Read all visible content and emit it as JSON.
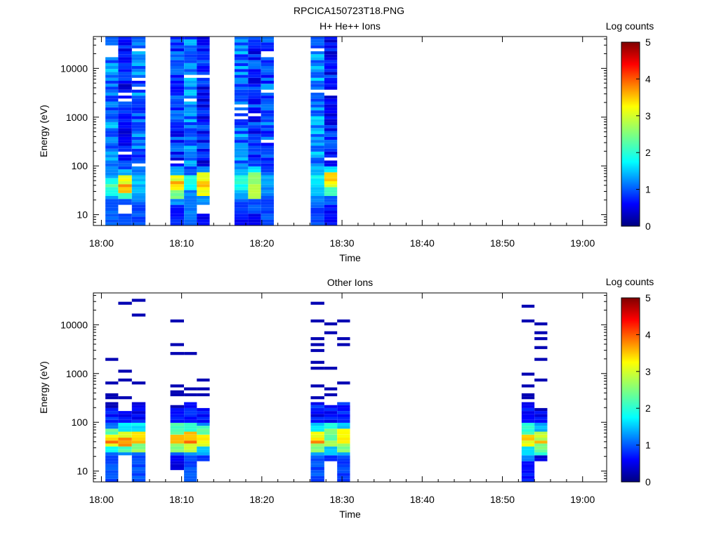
{
  "figure_title": "RPCICA150723T18.PNG",
  "chart_data": [
    {
      "type": "heatmap",
      "title": "H+ He++ Ions",
      "xlabel": "Time",
      "ylabel": "Energy (eV)",
      "y_scale": "log",
      "ylim": [
        6,
        45000
      ],
      "x_range": [
        "17:59",
        "19:03"
      ],
      "x_ticks": [
        "18:00",
        "18:10",
        "18:20",
        "18:30",
        "18:40",
        "18:50",
        "19:00"
      ],
      "y_ticks": [
        "10",
        "100",
        "1000",
        "10000"
      ],
      "colorbar": {
        "label": "Log counts",
        "range": [
          0,
          5
        ],
        "ticks": [
          "0",
          "1",
          "2",
          "3",
          "4",
          "5"
        ]
      },
      "scans": [
        {
          "start": "18:00.5",
          "end": "18:02.1",
          "low": [
            [
              6,
              1.1
            ],
            [
              12,
              1.1
            ],
            [
              20,
              1.4
            ],
            [
              25,
              1.9
            ],
            [
              30,
              2.2
            ],
            [
              38,
              2.4
            ],
            [
              45,
              1.9
            ],
            [
              55,
              1.4
            ],
            [
              70,
              1.2
            ],
            [
              100,
              1.3
            ]
          ],
          "mid": 1.25
        },
        {
          "start": "18:02.1",
          "end": "18:03.8",
          "low": [
            [
              6,
              1.0
            ],
            [
              10,
              null
            ],
            [
              15,
              1.0
            ],
            [
              22,
              2.1
            ],
            [
              28,
              3.4
            ],
            [
              35,
              3.6
            ],
            [
              45,
              3.0
            ],
            [
              60,
              1.5
            ],
            [
              80,
              1.0
            ],
            [
              100,
              0.6
            ]
          ],
          "mid": 0.7
        },
        {
          "start": "18:03.8",
          "end": "18:05.5",
          "low": [
            [
              6,
              1.0
            ],
            [
              15,
              1.2
            ],
            [
              25,
              1.5
            ],
            [
              40,
              1.6
            ],
            [
              60,
              1.3
            ],
            [
              100,
              1.0
            ]
          ],
          "mid": 1.15
        },
        {
          "start": "18:08.6",
          "end": "18:10.3",
          "low": [
            [
              6,
              0.8
            ],
            [
              15,
              1.3
            ],
            [
              22,
              2.5
            ],
            [
              30,
              3.3
            ],
            [
              40,
              3.6
            ],
            [
              50,
              3.0
            ],
            [
              60,
              1.5
            ],
            [
              100,
              0.9
            ]
          ],
          "mid": 0.85
        },
        {
          "start": "18:10.3",
          "end": "18:11.9",
          "low": [
            [
              6,
              1.2
            ],
            [
              20,
              1.3
            ],
            [
              30,
              2.0
            ],
            [
              40,
              2.1
            ],
            [
              60,
              1.0
            ],
            [
              100,
              1.3
            ]
          ],
          "mid": 1.2
        },
        {
          "start": "18:11.9",
          "end": "18:13.5",
          "low": [
            [
              6,
              0.6
            ],
            [
              10,
              null
            ],
            [
              15,
              1.4
            ],
            [
              25,
              3.0
            ],
            [
              35,
              3.4
            ],
            [
              50,
              2.9
            ],
            [
              70,
              1.3
            ],
            [
              100,
              0.7
            ]
          ],
          "mid": 0.75
        },
        {
          "start": "18:16.6",
          "end": "18:18.3",
          "low": [
            [
              6,
              0.7
            ],
            [
              10,
              1.0
            ],
            [
              20,
              1.5
            ],
            [
              30,
              1.9
            ],
            [
              40,
              2.0
            ],
            [
              60,
              1.4
            ],
            [
              100,
              1.0
            ]
          ],
          "mid": 1.2
        },
        {
          "start": "18:18.3",
          "end": "18:19.9",
          "low": [
            [
              6,
              0.6
            ],
            [
              10,
              1.0
            ],
            [
              15,
              1.0
            ],
            [
              20,
              2.8
            ],
            [
              30,
              2.9
            ],
            [
              45,
              2.6
            ],
            [
              70,
              1.7
            ],
            [
              100,
              1.1
            ]
          ],
          "mid": 0.8
        },
        {
          "start": "18:19.9",
          "end": "18:21.5",
          "low": [
            [
              6,
              1.0
            ],
            [
              15,
              1.0
            ],
            [
              25,
              1.3
            ],
            [
              40,
              1.4
            ],
            [
              60,
              1.0
            ],
            [
              100,
              0.8
            ]
          ],
          "mid": 1.0
        },
        {
          "start": "18:26.1",
          "end": "18:27.8",
          "low": [
            [
              6,
              1.0
            ],
            [
              15,
              1.2
            ],
            [
              25,
              1.6
            ],
            [
              40,
              1.9
            ],
            [
              60,
              1.5
            ],
            [
              100,
              1.0
            ]
          ],
          "mid": 1.3
        },
        {
          "start": "18:27.8",
          "end": "18:29.4",
          "low": [
            [
              6,
              0.7
            ],
            [
              15,
              1.1
            ],
            [
              25,
              2.2
            ],
            [
              35,
              3.0
            ],
            [
              50,
              3.4
            ],
            [
              70,
              1.8
            ],
            [
              100,
              1.0
            ]
          ],
          "mid": 0.75
        }
      ]
    },
    {
      "type": "heatmap",
      "title": "Other Ions",
      "xlabel": "Time",
      "ylabel": "Energy (eV)",
      "y_scale": "log",
      "ylim": [
        6,
        45000
      ],
      "x_range": [
        "17:59",
        "19:03"
      ],
      "x_ticks": [
        "18:00",
        "18:10",
        "18:20",
        "18:30",
        "18:40",
        "18:50",
        "19:00"
      ],
      "y_ticks": [
        "10",
        "100",
        "1000",
        "10000"
      ],
      "colorbar": {
        "label": "Log counts",
        "range": [
          0,
          5
        ],
        "ticks": [
          "0",
          "1",
          "2",
          "3",
          "4",
          "5"
        ]
      },
      "scans": [
        {
          "start": "18:00.5",
          "end": "18:02.1",
          "low": [
            [
              6,
              1.0
            ],
            [
              20,
              1.1
            ],
            [
              25,
              1.8
            ],
            [
              30,
              3.0
            ],
            [
              35,
              3.9
            ],
            [
              45,
              3.2
            ],
            [
              55,
              2.3
            ],
            [
              70,
              1.2
            ],
            [
              100,
              0.8
            ],
            [
              200,
              0.5
            ]
          ]
        },
        {
          "start": "18:02.1",
          "end": "18:03.8",
          "low": [
            [
              10,
              null
            ],
            [
              20,
              1.4
            ],
            [
              25,
              2.3
            ],
            [
              30,
              3.6
            ],
            [
              40,
              3.8
            ],
            [
              50,
              2.9
            ],
            [
              65,
              1.8
            ],
            [
              100,
              0.8
            ],
            [
              160,
              0.4
            ]
          ]
        },
        {
          "start": "18:03.8",
          "end": "18:05.5",
          "low": [
            [
              6,
              1.0
            ],
            [
              20,
              1.3
            ],
            [
              25,
              2.6
            ],
            [
              35,
              3.6
            ],
            [
              45,
              3.3
            ],
            [
              60,
              1.8
            ],
            [
              100,
              0.9
            ],
            [
              250,
              0.5
            ]
          ]
        },
        {
          "start": "18:08.6",
          "end": "18:10.3",
          "low": [
            [
              10,
              0.5
            ],
            [
              20,
              1.1
            ],
            [
              25,
              2.5
            ],
            [
              35,
              3.5
            ],
            [
              45,
              3.5
            ],
            [
              55,
              2.2
            ],
            [
              100,
              0.6
            ],
            [
              190,
              0.3
            ]
          ]
        },
        {
          "start": "18:10.3",
          "end": "18:11.9",
          "low": [
            [
              6,
              1.0
            ],
            [
              20,
              1.5
            ],
            [
              25,
              2.9
            ],
            [
              35,
              4.0
            ],
            [
              45,
              3.4
            ],
            [
              60,
              2.0
            ],
            [
              100,
              0.9
            ],
            [
              250,
              0.4
            ]
          ]
        },
        {
          "start": "18:11.9",
          "end": "18:13.5",
          "low": [
            [
              15,
              0.8
            ],
            [
              20,
              1.6
            ],
            [
              30,
              3.0
            ],
            [
              40,
              3.2
            ],
            [
              55,
              2.3
            ],
            [
              80,
              1.3
            ],
            [
              100,
              1.0
            ],
            [
              190,
              0.4
            ]
          ]
        },
        {
          "start": "18:26.1",
          "end": "18:27.8",
          "low": [
            [
              6,
              1.0
            ],
            [
              20,
              1.4
            ],
            [
              25,
              2.5
            ],
            [
              35,
              3.8
            ],
            [
              45,
              3.1
            ],
            [
              60,
              1.7
            ],
            [
              100,
              0.9
            ],
            [
              260,
              0.4
            ]
          ]
        },
        {
          "start": "18:27.8",
          "end": "18:29.4",
          "low": [
            [
              15,
              0.8
            ],
            [
              20,
              1.6
            ],
            [
              30,
              2.6
            ],
            [
              45,
              2.4
            ],
            [
              70,
              2.0
            ],
            [
              120,
              1.5
            ],
            [
              210,
              0.5
            ]
          ]
        },
        {
          "start": "18:29.4",
          "end": "18:31.0",
          "low": [
            [
              6,
              0.9
            ],
            [
              20,
              1.4
            ],
            [
              25,
              2.5
            ],
            [
              35,
              3.3
            ],
            [
              50,
              3.0
            ],
            [
              70,
              1.6
            ],
            [
              100,
              1.1
            ],
            [
              250,
              0.6
            ]
          ]
        },
        {
          "start": "18:52.4",
          "end": "18:54.0",
          "low": [
            [
              6,
              0.7
            ],
            [
              15,
              1.2
            ],
            [
              20,
              1.8
            ],
            [
              30,
              3.0
            ],
            [
              40,
              3.3
            ],
            [
              55,
              2.1
            ],
            [
              100,
              0.9
            ],
            [
              250,
              0.4
            ]
          ]
        },
        {
          "start": "18:54.0",
          "end": "18:55.6",
          "low": [
            [
              15,
              0.4
            ],
            [
              20,
              2.0
            ],
            [
              25,
              2.5
            ],
            [
              35,
              3.4
            ],
            [
              45,
              2.8
            ],
            [
              60,
              1.5
            ],
            [
              100,
              0.8
            ],
            [
              160,
              0.3
            ]
          ]
        }
      ]
    }
  ]
}
